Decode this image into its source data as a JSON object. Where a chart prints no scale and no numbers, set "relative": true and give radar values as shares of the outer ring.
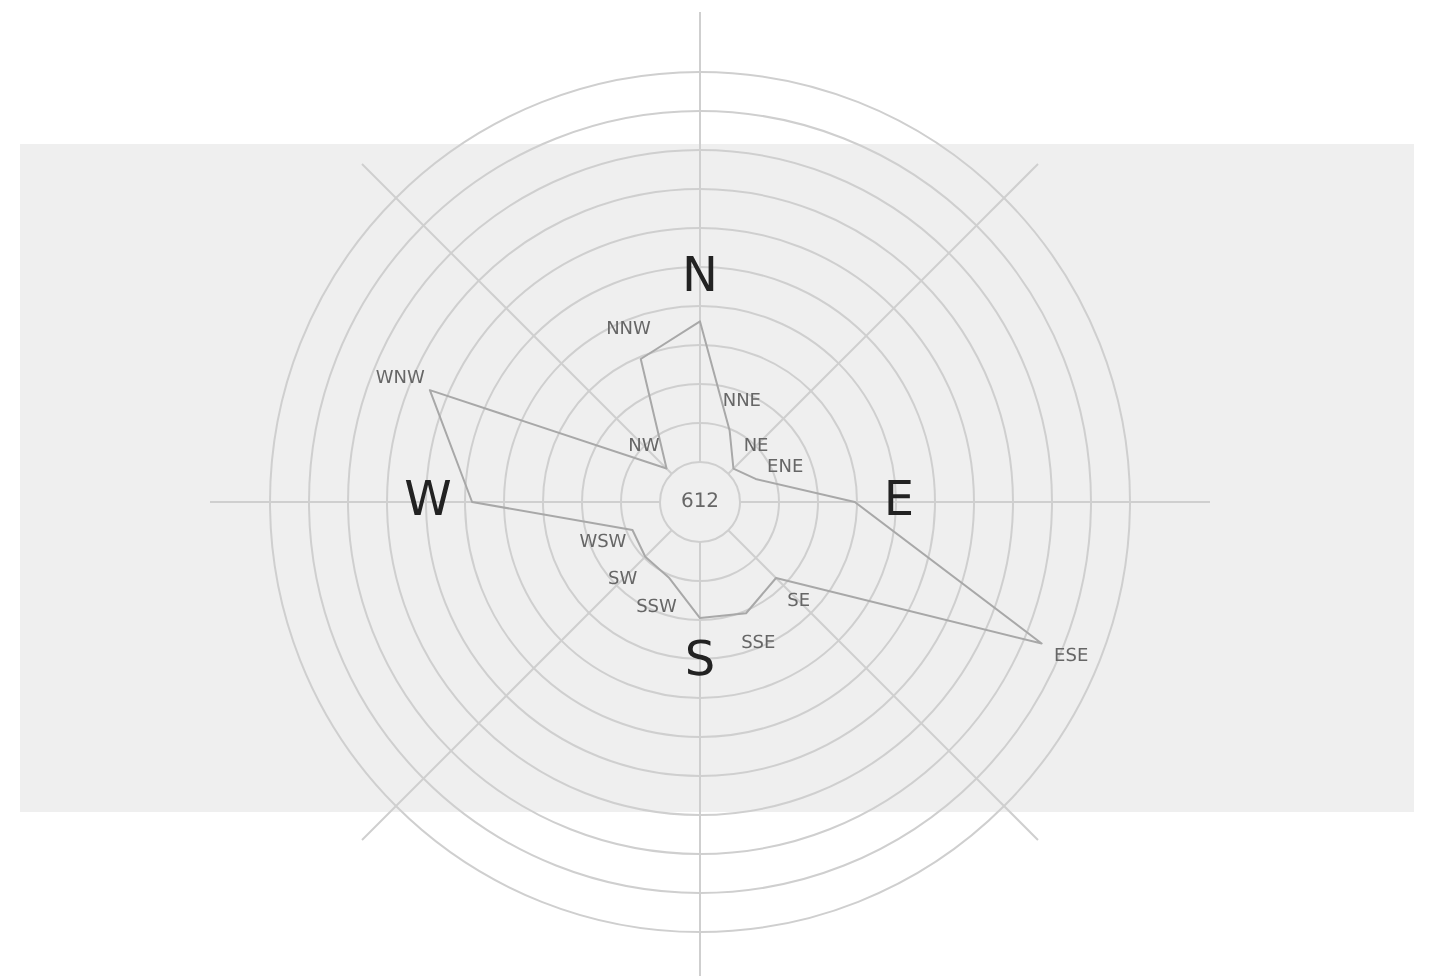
{
  "chart_data": {
    "type": "radar",
    "relative": true,
    "grid": true,
    "categories": [
      "N",
      "NNE",
      "NE",
      "ENE",
      "E",
      "ESE",
      "SE",
      "SSE",
      "S",
      "SSW",
      "SW",
      "WSW",
      "W",
      "WNW",
      "NW",
      "NNW"
    ],
    "series": [
      {
        "color": "#a8a8a8",
        "values": [
          0.42,
          0.18,
          0.11,
          0.14,
          0.36,
          0.86,
          0.25,
          0.28,
          0.27,
          0.19,
          0.18,
          0.17,
          0.53,
          0.68,
          0.11,
          0.36
        ]
      }
    ],
    "annotations": [
      "612"
    ]
  }
}
